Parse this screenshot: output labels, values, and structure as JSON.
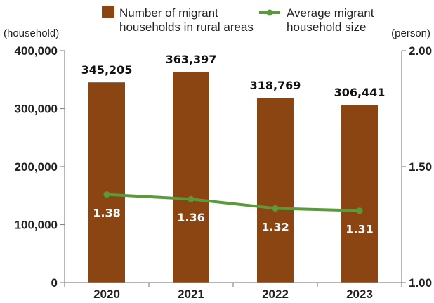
{
  "chart_data": {
    "type": "bar",
    "categories": [
      "2020",
      "2021",
      "2022",
      "2023"
    ],
    "series": [
      {
        "name": "Number of migrant households in rural areas",
        "type": "bar",
        "axis": "left",
        "values": [
          345205,
          363397,
          318769,
          306441
        ],
        "labels": [
          "345,205",
          "363,397",
          "318,769",
          "306,441"
        ],
        "color": "#8B4513"
      },
      {
        "name": "Average migrant household size",
        "type": "line",
        "axis": "right",
        "values": [
          1.38,
          1.36,
          1.32,
          1.31
        ],
        "labels": [
          "1.38",
          "1.36",
          "1.32",
          "1.31"
        ],
        "color": "#5a9a3a"
      }
    ],
    "legend": {
      "placement": "top",
      "bar_lines": [
        "Number of migrant",
        "households in rural areas"
      ],
      "line_lines": [
        "Average migrant",
        "household size"
      ]
    },
    "y_left": {
      "unit": "(household)",
      "ylim": [
        0,
        400000
      ],
      "ticks": [
        "0",
        "100,000",
        "200,000",
        "300,000",
        "400,000"
      ]
    },
    "y_right": {
      "unit": "(person)",
      "ylim": [
        1.0,
        2.0
      ],
      "ticks": [
        "1.00",
        "1.50",
        "2.00"
      ]
    },
    "grid": false
  }
}
